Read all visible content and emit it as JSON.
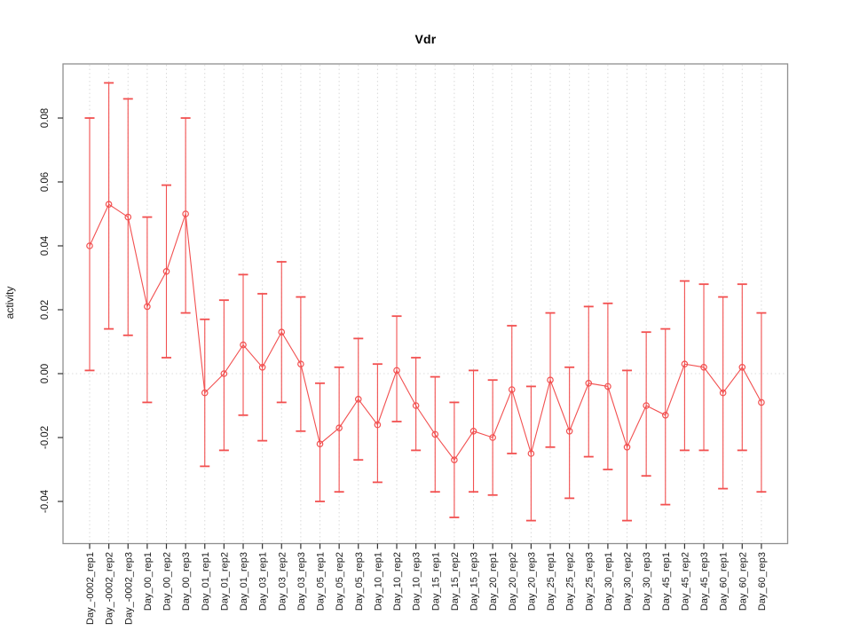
{
  "figure": {
    "background": "#ffffff"
  },
  "chart_data": {
    "type": "scatter",
    "subtype": "points-with-error-bars-connected-by-line",
    "title": "Vdr",
    "xlabel": "",
    "ylabel": "activity",
    "ylim": [
      -0.053,
      0.097
    ],
    "yticks": [
      "-0.04",
      "-0.02",
      "0.00",
      "0.02",
      "0.04",
      "0.06",
      "0.08"
    ],
    "grid": "vertical dotted gridline at every category; dotted horizontal reference line at y=0",
    "legend": "none",
    "marker": "open-circle",
    "connected": true,
    "colors": {
      "series": "#f25050",
      "grid": "#d9d9d9",
      "zero_line": "#dcdcdc",
      "box": "#8f8f8f",
      "tick": "#333333",
      "label": "#1a1a1a"
    },
    "categories": [
      "Day_-0002_rep1",
      "Day_-0002_rep2",
      "Day_-0002_rep3",
      "Day_00_rep1",
      "Day_00_rep2",
      "Day_00_rep3",
      "Day_01_rep1",
      "Day_01_rep2",
      "Day_01_rep3",
      "Day_03_rep1",
      "Day_03_rep2",
      "Day_03_rep3",
      "Day_05_rep1",
      "Day_05_rep2",
      "Day_05_rep3",
      "Day_10_rep1",
      "Day_10_rep2",
      "Day_10_rep3",
      "Day_15_rep1",
      "Day_15_rep2",
      "Day_15_rep3",
      "Day_20_rep1",
      "Day_20_rep2",
      "Day_20_rep3",
      "Day_25_rep1",
      "Day_25_rep2",
      "Day_25_rep3",
      "Day_30_rep1",
      "Day_30_rep2",
      "Day_30_rep3",
      "Day_45_rep1",
      "Day_45_rep2",
      "Day_45_rep3",
      "Day_60_rep1",
      "Day_60_rep2",
      "Day_60_rep3"
    ],
    "series": [
      {
        "name": "activity",
        "values": [
          0.04,
          0.053,
          0.049,
          0.021,
          0.032,
          0.05,
          -0.006,
          0.0,
          0.009,
          0.002,
          0.013,
          0.003,
          -0.022,
          -0.017,
          -0.008,
          -0.016,
          0.001,
          -0.01,
          -0.019,
          -0.027,
          -0.018,
          -0.02,
          -0.005,
          -0.025,
          -0.002,
          -0.018,
          -0.003,
          -0.004,
          -0.023,
          -0.01,
          -0.013,
          0.003,
          0.002,
          -0.006,
          0.002,
          -0.009
        ],
        "lower": [
          0.001,
          0.014,
          0.012,
          -0.009,
          0.005,
          0.019,
          -0.029,
          -0.024,
          -0.013,
          -0.021,
          -0.009,
          -0.018,
          -0.04,
          -0.037,
          -0.027,
          -0.034,
          -0.015,
          -0.024,
          -0.037,
          -0.045,
          -0.037,
          -0.038,
          -0.025,
          -0.046,
          -0.023,
          -0.039,
          -0.026,
          -0.03,
          -0.046,
          -0.032,
          -0.041,
          -0.024,
          -0.024,
          -0.036,
          -0.024,
          -0.037
        ],
        "upper": [
          0.08,
          0.091,
          0.086,
          0.049,
          0.059,
          0.08,
          0.017,
          0.023,
          0.031,
          0.025,
          0.035,
          0.024,
          -0.003,
          0.002,
          0.011,
          0.003,
          0.018,
          0.005,
          -0.001,
          -0.009,
          0.001,
          -0.002,
          0.015,
          -0.004,
          0.019,
          0.002,
          0.021,
          0.022,
          0.001,
          0.013,
          0.014,
          0.029,
          0.028,
          0.024,
          0.028,
          0.019
        ]
      }
    ]
  }
}
